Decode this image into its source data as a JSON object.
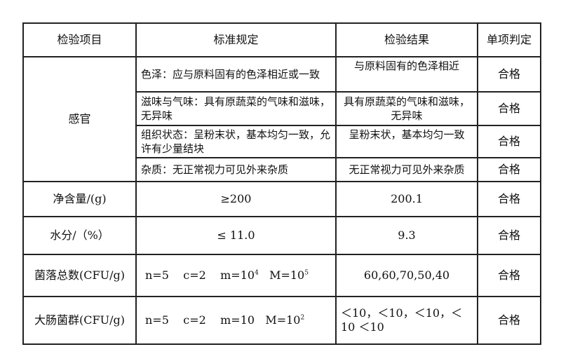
{
  "headers": [
    "检验项目",
    "标准规定",
    "检验结果",
    "单项判定"
  ],
  "sensory": {
    "label": "感官",
    "rows": [
      {
        "standard": "色泽：应与原料固有的色泽相近或一致",
        "result": "与原料固有的色泽相近",
        "verdict": "合格"
      },
      {
        "standard": "滋味与气味：具有原蔬菜的气味和滋味，无异味",
        "result": "具有原蔬菜的气味和滋味，无异味",
        "verdict": "合格"
      },
      {
        "standard": "组织状态：呈粉末状，基本均匀一致，允许有少量结块",
        "result": "呈粉末状，基本均匀一致",
        "verdict": "合格"
      },
      {
        "standard": "杂质：无正常视力可见外来杂质",
        "result": "无正常视力可见外来杂质",
        "verdict": "合格"
      }
    ]
  },
  "net": {
    "label": "净含量/(g)",
    "standard": "≥200",
    "result": "200.1",
    "verdict": "合格"
  },
  "water": {
    "label": "水分/（%）",
    "standard": "≤ 11.0",
    "result": "9.3",
    "verdict": "合格"
  },
  "colony": {
    "label": "菌落总数(CFU/g)",
    "n": "n=5",
    "c": "c=2",
    "m": "m=10",
    "m_exp": "4",
    "M": "M=10",
    "M_exp": "5",
    "result": "60,60,70,50,40",
    "verdict": "合格"
  },
  "coliform": {
    "label": "大肠菌群(CFU/g)",
    "n": "n=5",
    "c": "c=2",
    "m": "m=10",
    "M": "M=10",
    "M_exp": "2",
    "result": "＜10，＜10，＜10，＜10 ＜10",
    "verdict": "合格"
  }
}
